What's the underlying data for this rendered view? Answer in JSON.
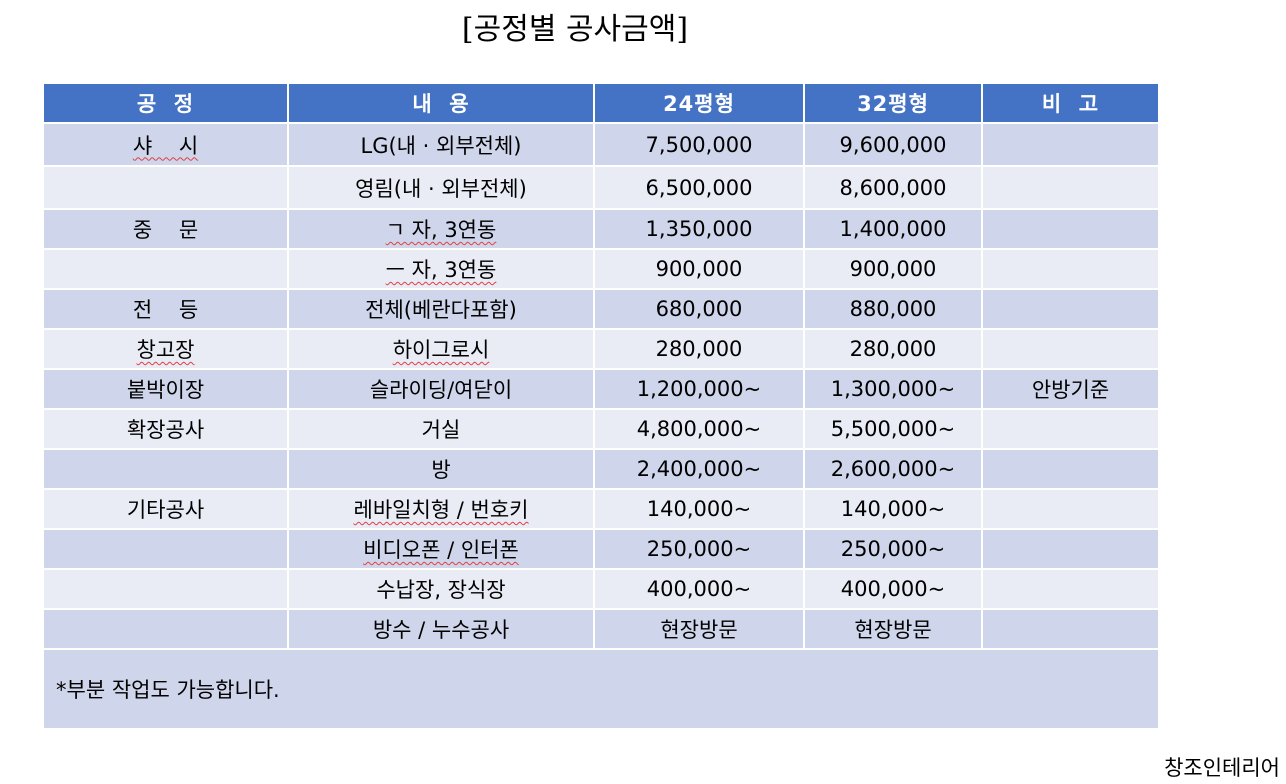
{
  "title": "[공정별 공사금액]",
  "table": {
    "headers": [
      "공  정",
      "내  용",
      "24평형",
      "32평형",
      "비  고"
    ],
    "rows": [
      {
        "process": "샤    시",
        "content": "LG(내 · 외부전체)",
        "p24": "7,500,000",
        "p32": "9,600,000",
        "note": ""
      },
      {
        "process": "",
        "content": "영림(내 · 외부전체)",
        "p24": "6,500,000",
        "p32": "8,600,000",
        "note": ""
      },
      {
        "process": "중    문",
        "content": "ㄱ 자, 3연동",
        "p24": "1,350,000",
        "p32": "1,400,000",
        "note": ""
      },
      {
        "process": "",
        "content": "ㅡ 자, 3연동",
        "p24": "900,000",
        "p32": "900,000",
        "note": ""
      },
      {
        "process": "전    등",
        "content": "전체(베란다포함)",
        "p24": "680,000",
        "p32": "880,000",
        "note": ""
      },
      {
        "process": "창고장",
        "content": "하이그로시",
        "p24": "280,000",
        "p32": "280,000",
        "note": ""
      },
      {
        "process": "붙박이장",
        "content": "슬라이딩/여닫이",
        "p24": "1,200,000~",
        "p32": "1,300,000~",
        "note": "안방기준"
      },
      {
        "process": "확장공사",
        "content": "거실",
        "p24": "4,800,000~",
        "p32": "5,500,000~",
        "note": ""
      },
      {
        "process": "",
        "content": "방",
        "p24": "2,400,000~",
        "p32": "2,600,000~",
        "note": ""
      },
      {
        "process": "기타공사",
        "content": "레바일치형 / 번호키",
        "p24": "140,000~",
        "p32": "140,000~",
        "note": ""
      },
      {
        "process": "",
        "content": "비디오폰 / 인터폰",
        "p24": "250,000~",
        "p32": "250,000~",
        "note": ""
      },
      {
        "process": "",
        "content": "수납장, 장식장",
        "p24": "400,000~",
        "p32": "400,000~",
        "note": ""
      },
      {
        "process": "",
        "content": "방수 / 누수공사",
        "p24": "현장방문",
        "p32": "현장방문",
        "note": ""
      }
    ],
    "footnote": "*부분 작업도 가능합니다."
  },
  "watermark": "창조인테리어",
  "colors": {
    "header": "#4472c4",
    "row_dark": "#cfd5ea",
    "row_light": "#e9ebf5"
  }
}
